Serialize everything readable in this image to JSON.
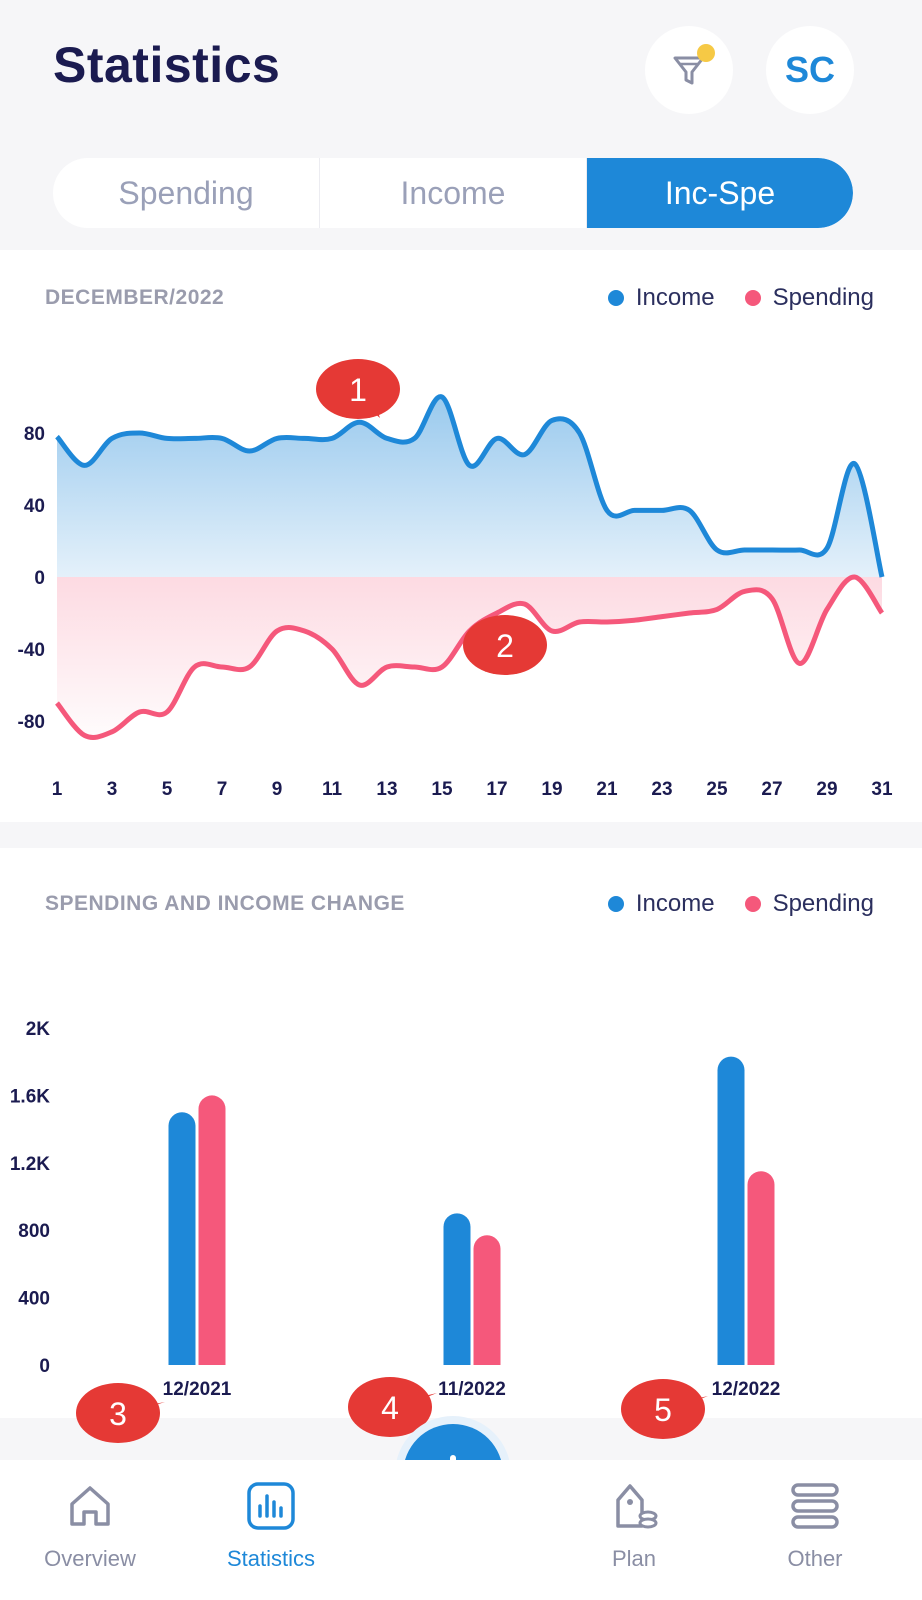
{
  "header": {
    "title": "Statistics",
    "avatar_initials": "SC",
    "filter_icon": "filter-icon"
  },
  "tabs": [
    {
      "label": "Spending",
      "active": false
    },
    {
      "label": "Income",
      "active": false
    },
    {
      "label": "Inc-Spe",
      "active": true
    }
  ],
  "legend": {
    "income": "Income",
    "spending": "Spending"
  },
  "colors": {
    "income": "#1e88d8",
    "spending": "#f5587b",
    "accent": "#1e88d8",
    "callout": "#e53935"
  },
  "chart_data": [
    {
      "type": "area",
      "title": "DECEMBER/2022",
      "x_ticks": [
        "1",
        "3",
        "5",
        "7",
        "9",
        "11",
        "13",
        "15",
        "17",
        "19",
        "21",
        "23",
        "25",
        "27",
        "29",
        "31"
      ],
      "y_ticks": [
        "80",
        "40",
        "0",
        "-40",
        "-80"
      ],
      "ylim": [
        -100,
        110
      ],
      "x": [
        1,
        2,
        3,
        4,
        5,
        6,
        7,
        8,
        9,
        10,
        11,
        12,
        13,
        14,
        15,
        16,
        17,
        18,
        19,
        20,
        21,
        22,
        23,
        24,
        25,
        26,
        27,
        28,
        29,
        30,
        31
      ],
      "series": [
        {
          "name": "Income",
          "values": [
            78,
            62,
            77,
            80,
            77,
            77,
            77,
            70,
            77,
            77,
            77,
            86,
            77,
            77,
            100,
            62,
            77,
            68,
            87,
            80,
            37,
            37,
            37,
            37,
            15,
            15,
            15,
            15,
            16,
            63,
            0
          ]
        },
        {
          "name": "Spending",
          "values": [
            -70,
            -88,
            -86,
            -75,
            -75,
            -50,
            -50,
            -50,
            -30,
            -30,
            -40,
            -60,
            -50,
            -50,
            -50,
            -30,
            -20,
            -15,
            -30,
            -25,
            -25,
            -24,
            -22,
            -20,
            -18,
            -8,
            -12,
            -48,
            -18,
            0,
            -20
          ]
        }
      ],
      "annotations": [
        "1",
        "2"
      ]
    },
    {
      "type": "bar",
      "title": "SPENDING AND INCOME CHANGE",
      "categories": [
        "12/2021",
        "11/2022",
        "12/2022"
      ],
      "y_ticks": [
        "2K",
        "1.6K",
        "1.2K",
        "800",
        "400",
        "0"
      ],
      "ylim": [
        0,
        2000
      ],
      "series": [
        {
          "name": "Income",
          "values": [
            1500,
            900,
            1830
          ]
        },
        {
          "name": "Spending",
          "values": [
            1600,
            770,
            1150
          ]
        }
      ],
      "annotations": [
        "3",
        "4",
        "5"
      ]
    }
  ],
  "nav": [
    {
      "label": "Overview",
      "icon": "home-icon",
      "active": false
    },
    {
      "label": "Statistics",
      "icon": "bar-chart-icon",
      "active": true
    },
    {
      "label": "Plan",
      "icon": "plan-icon",
      "active": false
    },
    {
      "label": "Other",
      "icon": "menu-icon",
      "active": false
    }
  ],
  "fab_icon": "plus-icon"
}
